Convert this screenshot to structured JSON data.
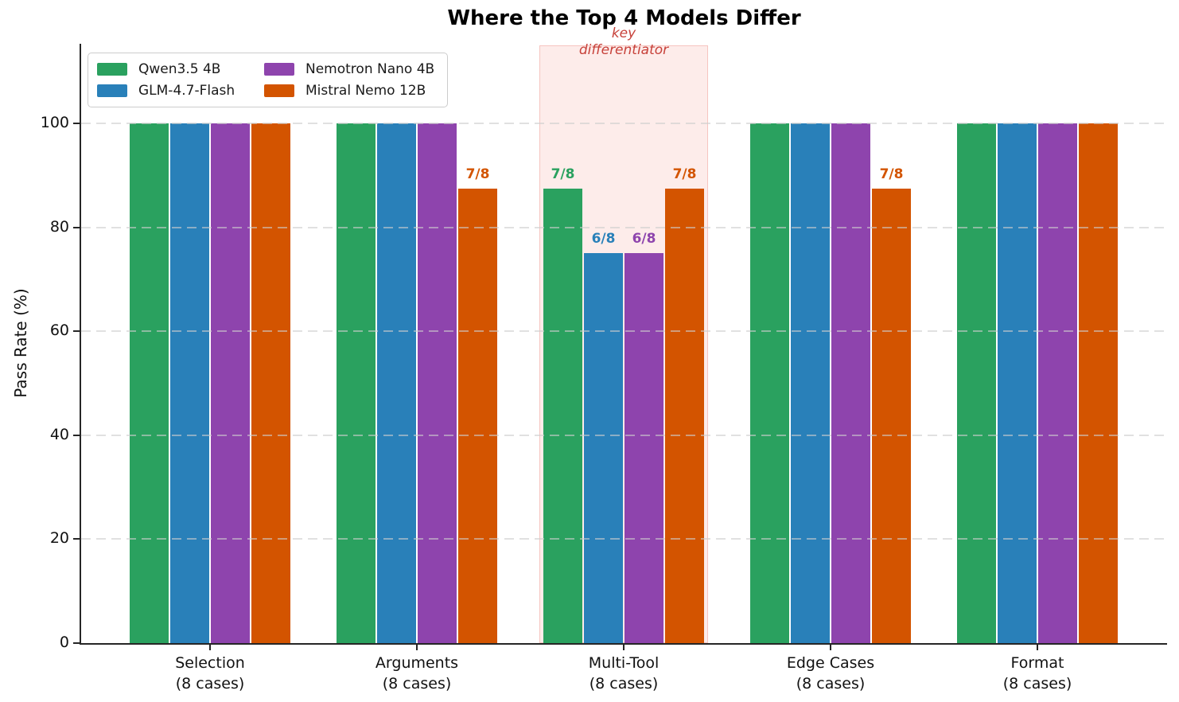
{
  "chart_data": {
    "type": "bar",
    "title": "Where the Top 4 Models Differ",
    "xlabel": "",
    "ylabel": "Pass Rate (%)",
    "ylim": [
      0,
      115
    ],
    "yticks": [
      0,
      20,
      40,
      60,
      80,
      100
    ],
    "grid": {
      "axis": "y",
      "style": "dashed",
      "color": "#d5d5d5"
    },
    "legend_position": "upper left",
    "categories": [
      {
        "line1": "Selection",
        "line2": "(8 cases)"
      },
      {
        "line1": "Arguments",
        "line2": "(8 cases)"
      },
      {
        "line1": "Multi-Tool",
        "line2": "(8 cases)"
      },
      {
        "line1": "Edge Cases",
        "line2": "(8 cases)"
      },
      {
        "line1": "Format",
        "line2": "(8 cases)"
      }
    ],
    "series": [
      {
        "name": "Qwen3.5 4B",
        "color": "#2aa15f",
        "values": [
          100,
          100,
          87.5,
          100,
          100
        ],
        "bar_labels": [
          null,
          null,
          "7/8",
          null,
          null
        ]
      },
      {
        "name": "GLM-4.7-Flash",
        "color": "#2980b9",
        "values": [
          100,
          100,
          75,
          100,
          100
        ],
        "bar_labels": [
          null,
          null,
          "6/8",
          null,
          null
        ]
      },
      {
        "name": "Nemotron Nano 4B",
        "color": "#8e44ad",
        "values": [
          100,
          100,
          75,
          100,
          100
        ],
        "bar_labels": [
          null,
          null,
          "6/8",
          null,
          null
        ]
      },
      {
        "name": "Mistral Nemo 12B",
        "color": "#d35400",
        "values": [
          100,
          87.5,
          87.5,
          87.5,
          100
        ],
        "bar_labels": [
          null,
          "7/8",
          "7/8",
          "7/8",
          null
        ]
      }
    ],
    "highlight": {
      "category": "Multi-Tool",
      "category_index": 2,
      "annotation_line1": "key",
      "annotation_line2": "differentiator",
      "text_color": "#c7413a",
      "fill_color": "#fdecea",
      "border_color": "#f6c5c0"
    }
  }
}
